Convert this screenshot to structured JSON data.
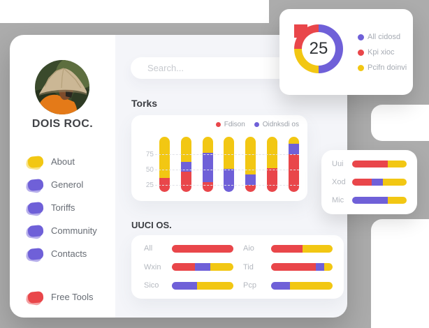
{
  "colors": {
    "red": "#E9464A",
    "yellow": "#F2C713",
    "purple": "#6F60D8",
    "gray_backdrop": "#ACACAC",
    "page_bg": "#F4F5F9"
  },
  "profile": {
    "name": "DOIS ROC."
  },
  "sidebar": {
    "items": [
      {
        "label": "About",
        "color": "yellow"
      },
      {
        "label": "Generol",
        "color": "purple"
      },
      {
        "label": "Toriffs",
        "color": "purple"
      },
      {
        "label": "Community",
        "color": "purple"
      },
      {
        "label": "Contacts",
        "color": "purple"
      }
    ],
    "footer_item": {
      "label": "Free Tools",
      "color": "red"
    }
  },
  "search": {
    "placeholder": "Search...",
    "value": ""
  },
  "sections": {
    "torks_title": "Torks",
    "uuci_title": "UUCI OS."
  },
  "chart_data": [
    {
      "id": "donut",
      "type": "pie",
      "center_value": "25",
      "conic_order_clockwise_from_top": [
        "purple",
        "yellow",
        "red"
      ],
      "slices": [
        {
          "label": "All cidosd",
          "color": "purple",
          "value": 50
        },
        {
          "label": "Kpi xioc",
          "color": "red",
          "value": 25
        },
        {
          "label": "Pcifn doinvi",
          "color": "yellow",
          "value": 25
        }
      ],
      "legend_position": "right"
    },
    {
      "id": "torks",
      "type": "bar",
      "title": "Torks",
      "legend": [
        {
          "label": "Fdison",
          "color": "red"
        },
        {
          "label": "Oidnksdi os",
          "color": "purple"
        }
      ],
      "y_ticks": [
        25,
        50,
        75
      ],
      "grid": "dashed",
      "bars": [
        {
          "segments": [
            {
              "c": "red",
              "v": 25
            },
            {
              "c": "yellow",
              "v": 75
            }
          ]
        },
        {
          "segments": [
            {
              "c": "red",
              "v": 37
            },
            {
              "c": "purple",
              "v": 17
            },
            {
              "c": "yellow",
              "v": 46
            }
          ]
        },
        {
          "segments": [
            {
              "c": "red",
              "v": 18
            },
            {
              "c": "purple",
              "v": 53
            },
            {
              "c": "yellow",
              "v": 29
            }
          ]
        },
        {
          "segments": [
            {
              "c": "purple",
              "v": 42
            },
            {
              "c": "yellow",
              "v": 58
            }
          ]
        },
        {
          "segments": [
            {
              "c": "red",
              "v": 13
            },
            {
              "c": "purple",
              "v": 19
            },
            {
              "c": "yellow",
              "v": 68
            }
          ]
        },
        {
          "segments": [
            {
              "c": "red",
              "v": 43
            },
            {
              "c": "yellow",
              "v": 57
            }
          ]
        },
        {
          "segments": [
            {
              "c": "red",
              "v": 68
            },
            {
              "c": "purple",
              "v": 19
            },
            {
              "c": "yellow",
              "v": 13
            }
          ]
        }
      ]
    },
    {
      "id": "uuci",
      "type": "hbar",
      "title": "UUCI OS.",
      "columns": [
        [
          {
            "label": "All",
            "segments": [
              {
                "c": "red",
                "v": 100
              }
            ]
          },
          {
            "label": "Wxin",
            "segments": [
              {
                "c": "red",
                "v": 38
              },
              {
                "c": "purple",
                "v": 25
              },
              {
                "c": "yellow",
                "v": 37
              }
            ]
          },
          {
            "label": "Sico",
            "segments": [
              {
                "c": "purple",
                "v": 41
              },
              {
                "c": "yellow",
                "v": 59
              }
            ]
          }
        ],
        [
          {
            "label": "Aio",
            "segments": [
              {
                "c": "red",
                "v": 51
              },
              {
                "c": "yellow",
                "v": 49
              }
            ]
          },
          {
            "label": "Tid",
            "segments": [
              {
                "c": "red",
                "v": 73
              },
              {
                "c": "purple",
                "v": 13
              },
              {
                "c": "yellow",
                "v": 14
              }
            ]
          },
          {
            "label": "Pcp",
            "segments": [
              {
                "c": "purple",
                "v": 31
              },
              {
                "c": "yellow",
                "v": 69
              }
            ]
          }
        ]
      ]
    },
    {
      "id": "side",
      "type": "hbar",
      "rows": [
        {
          "label": "Uui",
          "segments": [
            {
              "c": "red",
              "v": 65
            },
            {
              "c": "yellow",
              "v": 35
            }
          ]
        },
        {
          "label": "Xod",
          "segments": [
            {
              "c": "red",
              "v": 36
            },
            {
              "c": "purple",
              "v": 20
            },
            {
              "c": "yellow",
              "v": 44
            }
          ]
        },
        {
          "label": "Mic",
          "segments": [
            {
              "c": "purple",
              "v": 65
            },
            {
              "c": "yellow",
              "v": 35
            }
          ]
        }
      ]
    }
  ]
}
